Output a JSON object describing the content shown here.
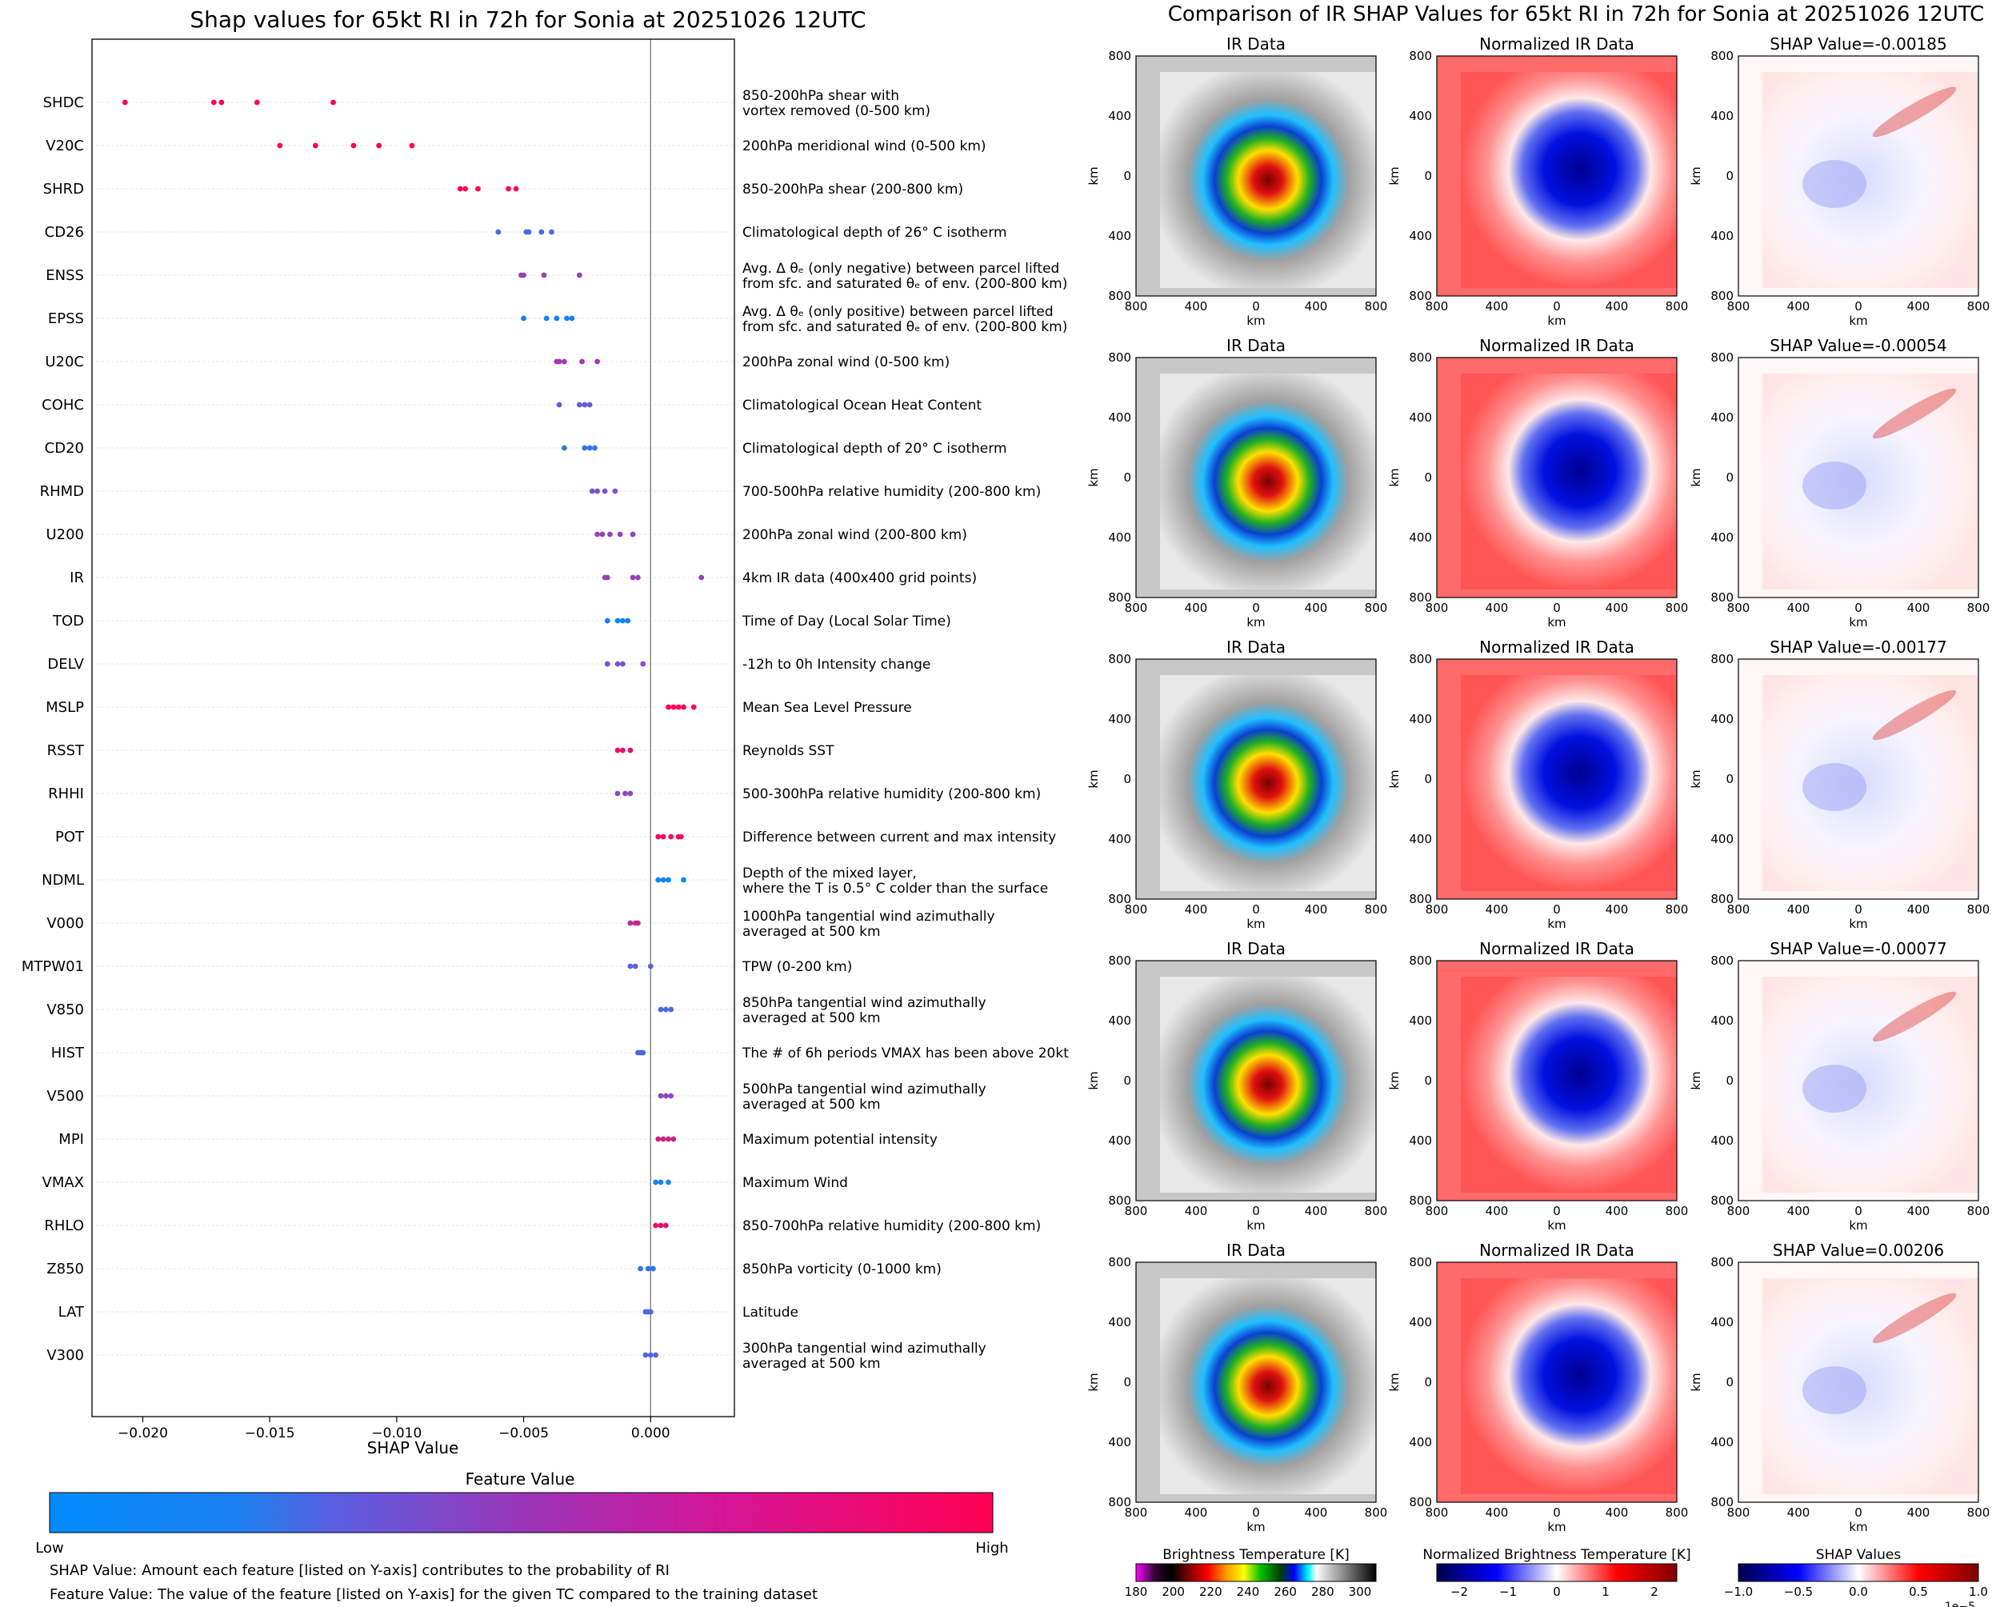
{
  "chart_data": [
    {
      "type": "scatter",
      "title": "Shap values for 65kt RI in 72h for Sonia at 20251026 12UTC",
      "xlabel": "SHAP Value",
      "xlim": [
        -0.022,
        0.0033
      ],
      "xticks": [
        {
          "v": -0.02,
          "label": "−0.020"
        },
        {
          "v": -0.015,
          "label": "−0.015"
        },
        {
          "v": -0.01,
          "label": "−0.010"
        },
        {
          "v": -0.005,
          "label": "−0.005"
        },
        {
          "v": 0.0,
          "label": "0.000"
        }
      ],
      "features": [
        {
          "code": "SHDC",
          "desc": [
            "850-200hPa shear with",
            "vortex removed (0-500 km)"
          ],
          "points": [
            [
              -0.0207,
              1.0
            ],
            [
              -0.0172,
              1.0
            ],
            [
              -0.0169,
              1.0
            ],
            [
              -0.0155,
              1.0
            ],
            [
              -0.0125,
              1.0
            ]
          ]
        },
        {
          "code": "V20C",
          "desc": [
            "200hPa meridional wind (0-500 km)"
          ],
          "points": [
            [
              -0.0146,
              1.0
            ],
            [
              -0.0132,
              1.0
            ],
            [
              -0.0117,
              1.0
            ],
            [
              -0.0107,
              1.0
            ],
            [
              -0.0094,
              1.0
            ]
          ]
        },
        {
          "code": "SHRD",
          "desc": [
            "850-200hPa shear (200-800 km)"
          ],
          "points": [
            [
              -0.0075,
              0.98
            ],
            [
              -0.0073,
              0.98
            ],
            [
              -0.0068,
              0.98
            ],
            [
              -0.0056,
              0.98
            ],
            [
              -0.0053,
              0.98
            ]
          ]
        },
        {
          "code": "CD26",
          "desc": [
            "Climatological depth of 26° C isotherm"
          ],
          "points": [
            [
              -0.006,
              0.3
            ],
            [
              -0.0049,
              0.3
            ],
            [
              -0.0048,
              0.3
            ],
            [
              -0.0043,
              0.3
            ],
            [
              -0.0039,
              0.3
            ]
          ]
        },
        {
          "code": "ENSS",
          "desc": [
            "Avg. Δ θₑ (only negative) between parcel lifted",
            "from sfc. and saturated θₑ of env. (200-800 km)"
          ],
          "points": [
            [
              -0.0051,
              0.6
            ],
            [
              -0.005,
              0.6
            ],
            [
              -0.0042,
              0.6
            ],
            [
              -0.0028,
              0.6
            ]
          ]
        },
        {
          "code": "EPSS",
          "desc": [
            "Avg. Δ θₑ (only positive) between parcel lifted",
            "from sfc. and saturated θₑ of env. (200-800 km)"
          ],
          "points": [
            [
              -0.005,
              0.1
            ],
            [
              -0.0041,
              0.1
            ],
            [
              -0.0037,
              0.1
            ],
            [
              -0.0033,
              0.1
            ],
            [
              -0.0031,
              0.1
            ]
          ]
        },
        {
          "code": "U20C",
          "desc": [
            "200hPa zonal wind (0-500 km)"
          ],
          "points": [
            [
              -0.0037,
              0.65
            ],
            [
              -0.0036,
              0.65
            ],
            [
              -0.0034,
              0.65
            ],
            [
              -0.0027,
              0.65
            ],
            [
              -0.0021,
              0.65
            ]
          ]
        },
        {
          "code": "COHC",
          "desc": [
            "Climatological Ocean Heat Content"
          ],
          "points": [
            [
              -0.0036,
              0.4
            ],
            [
              -0.0028,
              0.4
            ],
            [
              -0.0026,
              0.4
            ],
            [
              -0.0024,
              0.4
            ]
          ]
        },
        {
          "code": "CD20",
          "desc": [
            "Climatological depth of 20° C isotherm"
          ],
          "points": [
            [
              -0.0034,
              0.2
            ],
            [
              -0.0026,
              0.2
            ],
            [
              -0.0024,
              0.2
            ],
            [
              -0.0022,
              0.2
            ]
          ]
        },
        {
          "code": "RHMD",
          "desc": [
            "700-500hPa relative humidity (200-800 km)"
          ],
          "points": [
            [
              -0.0023,
              0.5
            ],
            [
              -0.0021,
              0.5
            ],
            [
              -0.0018,
              0.5
            ],
            [
              -0.0014,
              0.5
            ]
          ]
        },
        {
          "code": "U200",
          "desc": [
            "200hPa zonal wind (200-800 km)"
          ],
          "points": [
            [
              -0.0021,
              0.6
            ],
            [
              -0.0019,
              0.6
            ],
            [
              -0.0016,
              0.6
            ],
            [
              -0.0012,
              0.6
            ],
            [
              -0.0007,
              0.6
            ]
          ]
        },
        {
          "code": "IR",
          "desc": [
            "4km IR data (400x400 grid points)"
          ],
          "points": [
            [
              -0.0018,
              0.6
            ],
            [
              -0.0017,
              0.6
            ],
            [
              -0.0007,
              0.6
            ],
            [
              -0.0005,
              0.6
            ],
            [
              0.002,
              0.6
            ]
          ]
        },
        {
          "code": "TOD",
          "desc": [
            "Time of Day (Local Solar Time)"
          ],
          "points": [
            [
              -0.0017,
              0.05
            ],
            [
              -0.0013,
              0.05
            ],
            [
              -0.0011,
              0.05
            ],
            [
              -0.0009,
              0.05
            ]
          ]
        },
        {
          "code": "DELV",
          "desc": [
            "-12h to 0h Intensity change"
          ],
          "points": [
            [
              -0.0017,
              0.5
            ],
            [
              -0.0013,
              0.5
            ],
            [
              -0.0011,
              0.5
            ],
            [
              -0.0003,
              0.5
            ]
          ]
        },
        {
          "code": "MSLP",
          "desc": [
            "Mean Sea Level Pressure"
          ],
          "points": [
            [
              0.0007,
              1.0
            ],
            [
              0.0009,
              1.0
            ],
            [
              0.0011,
              1.0
            ],
            [
              0.0013,
              1.0
            ],
            [
              0.0017,
              1.0
            ]
          ]
        },
        {
          "code": "RSST",
          "desc": [
            "Reynolds SST"
          ],
          "points": [
            [
              -0.0013,
              0.9
            ],
            [
              -0.0011,
              0.9
            ],
            [
              -0.0008,
              0.9
            ]
          ]
        },
        {
          "code": "RHHI",
          "desc": [
            "500-300hPa relative humidity (200-800 km)"
          ],
          "points": [
            [
              -0.0013,
              0.55
            ],
            [
              -0.001,
              0.55
            ],
            [
              -0.0008,
              0.55
            ]
          ]
        },
        {
          "code": "POT",
          "desc": [
            "Difference between current and max intensity"
          ],
          "points": [
            [
              0.0003,
              0.95
            ],
            [
              0.0005,
              0.95
            ],
            [
              0.0008,
              0.95
            ],
            [
              0.0011,
              0.95
            ],
            [
              0.0012,
              0.95
            ]
          ]
        },
        {
          "code": "NDML",
          "desc": [
            "Depth of the mixed layer,",
            "where the T is 0.5° C colder than the surface"
          ],
          "points": [
            [
              0.0003,
              0.05
            ],
            [
              0.0005,
              0.05
            ],
            [
              0.0007,
              0.05
            ],
            [
              0.0013,
              0.05
            ]
          ]
        },
        {
          "code": "V000",
          "desc": [
            "1000hPa tangential wind azimuthally",
            "averaged at 500 km"
          ],
          "points": [
            [
              -0.0008,
              0.75
            ],
            [
              -0.0006,
              0.75
            ],
            [
              -0.0005,
              0.75
            ]
          ]
        },
        {
          "code": "MTPW01",
          "desc": [
            "TPW (0-200 km)"
          ],
          "points": [
            [
              -0.0008,
              0.35
            ],
            [
              -0.0006,
              0.35
            ],
            [
              0.0,
              0.35
            ]
          ]
        },
        {
          "code": "V850",
          "desc": [
            "850hPa tangential wind azimuthally",
            "averaged at 500 km"
          ],
          "points": [
            [
              0.0004,
              0.3
            ],
            [
              0.0006,
              0.3
            ],
            [
              0.0008,
              0.3
            ]
          ]
        },
        {
          "code": "HIST",
          "desc": [
            "The # of 6h periods VMAX has been above 20kt"
          ],
          "points": [
            [
              -0.0005,
              0.3
            ],
            [
              -0.0004,
              0.3
            ],
            [
              -0.0003,
              0.3
            ]
          ]
        },
        {
          "code": "V500",
          "desc": [
            "500hPa tangential wind azimuthally",
            "averaged at 500 km"
          ],
          "points": [
            [
              0.0004,
              0.55
            ],
            [
              0.0006,
              0.55
            ],
            [
              0.0008,
              0.55
            ]
          ]
        },
        {
          "code": "MPI",
          "desc": [
            "Maximum potential intensity"
          ],
          "points": [
            [
              0.0003,
              0.8
            ],
            [
              0.0005,
              0.8
            ],
            [
              0.0007,
              0.8
            ],
            [
              0.0009,
              0.8
            ]
          ]
        },
        {
          "code": "VMAX",
          "desc": [
            "Maximum Wind"
          ],
          "points": [
            [
              0.0002,
              0.1
            ],
            [
              0.0004,
              0.1
            ],
            [
              0.0007,
              0.1
            ]
          ]
        },
        {
          "code": "RHLO",
          "desc": [
            "850-700hPa relative humidity (200-800 km)"
          ],
          "points": [
            [
              0.0002,
              0.9
            ],
            [
              0.0004,
              0.9
            ],
            [
              0.0006,
              0.9
            ]
          ]
        },
        {
          "code": "Z850",
          "desc": [
            "850hPa vorticity (0-1000 km)"
          ],
          "points": [
            [
              -0.0004,
              0.2
            ],
            [
              -0.0001,
              0.2
            ],
            [
              0.0001,
              0.2
            ]
          ]
        },
        {
          "code": "LAT",
          "desc": [
            "Latitude"
          ],
          "points": [
            [
              -0.0002,
              0.3
            ],
            [
              -0.0001,
              0.3
            ],
            [
              0.0,
              0.3
            ]
          ]
        },
        {
          "code": "V300",
          "desc": [
            "300hPa tangential wind azimuthally",
            "averaged at 500 km"
          ],
          "points": [
            [
              -0.0002,
              0.35
            ],
            [
              0.0,
              0.35
            ],
            [
              0.0002,
              0.35
            ]
          ]
        }
      ],
      "colorbar": {
        "title": "Feature Value",
        "low_label": "Low",
        "high_label": "High"
      }
    },
    {
      "type": "heatmap",
      "title": "Comparison of IR SHAP Values for 65kt RI in 72h for Sonia at 20251026 12UTC",
      "panel_titles": {
        "ir": "IR Data",
        "norm": "Normalized IR Data"
      },
      "shap_titles": [
        "SHAP Value=-0.00185",
        "SHAP Value=-0.00054",
        "SHAP Value=-0.00177",
        "SHAP Value=-0.00077",
        "SHAP Value=0.00206"
      ],
      "axis_label": "km",
      "ticks": [
        "800",
        "400",
        "0",
        "400",
        "800"
      ],
      "colorbars": [
        {
          "title": "Brightness Temperature [K]",
          "ticks": [
            "180",
            "200",
            "220",
            "240",
            "260",
            "280",
            "300"
          ]
        },
        {
          "title": "Normalized Brightness Temperature [K]",
          "ticks": [
            "−2",
            "−1",
            "0",
            "1",
            "2"
          ]
        },
        {
          "title": "SHAP Values",
          "ticks": [
            "−1.0",
            "−0.5",
            "0.0",
            "0.5",
            "1.0"
          ],
          "offset": "1e−5"
        }
      ]
    }
  ],
  "footnotes": {
    "shap_def": "SHAP Value: Amount each feature [listed on Y-axis] contributes to the probability of RI",
    "feature_def": "Feature Value: The value of the feature [listed on Y-axis] for the given TC compared to the training dataset"
  },
  "colors": {
    "low": "#008bfb",
    "mid": "#7c52cf",
    "high": "#ff0052"
  }
}
